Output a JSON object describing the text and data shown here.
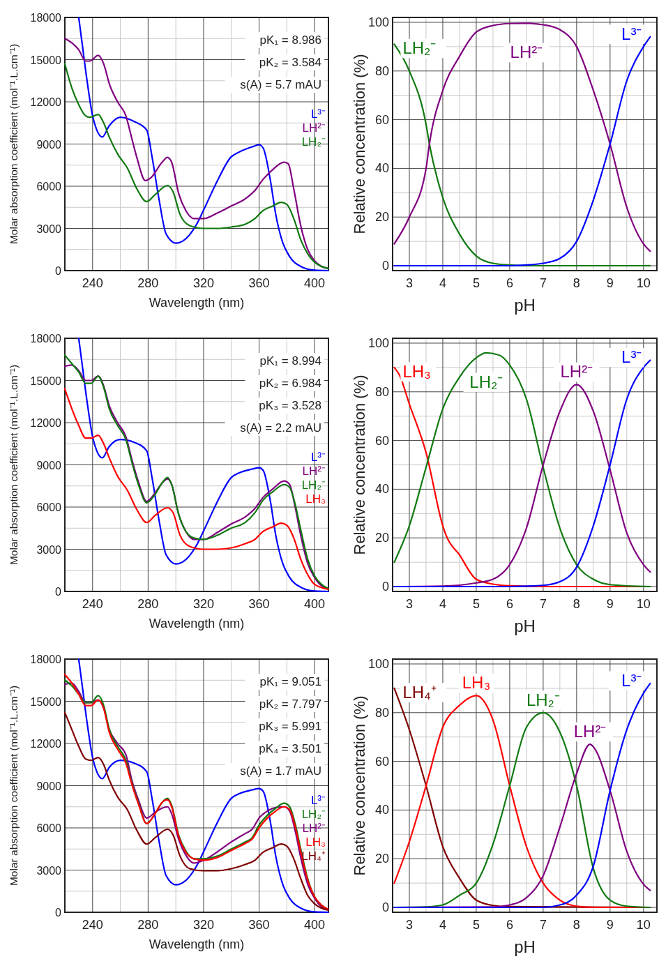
{
  "chart_data": [
    {
      "type": "line",
      "xlabel": "Wavelength (nm)",
      "ylabel": "Molar absorption coefficient (mol⁻¹.L.cm⁻¹)",
      "xlim": [
        220,
        410
      ],
      "xticks": [
        240,
        280,
        320,
        360,
        400
      ],
      "ylim": [
        0,
        18000
      ],
      "yticks": [
        0,
        3000,
        6000,
        9000,
        12000,
        15000,
        18000
      ],
      "grid": true,
      "annotations": [
        "pK₁ = 8.986",
        "pK₂ = 3.584",
        "s(A) = 5.7 mAU"
      ],
      "series": [
        {
          "name": "L³⁻",
          "color": "#0000ff",
          "x": [
            230,
            232,
            236,
            240,
            243,
            247,
            252,
            260,
            270,
            279,
            283,
            288,
            293,
            300,
            305,
            315,
            320,
            330,
            340,
            345,
            355,
            360,
            363,
            368,
            372,
            377,
            382,
            390,
            400,
            410
          ],
          "values": [
            18000,
            16500,
            13500,
            11000,
            10000,
            9500,
            10300,
            10900,
            10600,
            10000,
            8000,
            5000,
            2600,
            1950,
            2100,
            3300,
            4300,
            6400,
            8100,
            8400,
            8800,
            8950,
            8700,
            6500,
            4000,
            2000,
            1000,
            300,
            30,
            0
          ]
        },
        {
          "name": "LH²⁻",
          "color": "#800080",
          "x": [
            220,
            225,
            230,
            235,
            238,
            244,
            248,
            252,
            258,
            264,
            268,
            272,
            278,
            282,
            290,
            294,
            297,
            302,
            307,
            313,
            320,
            330,
            340,
            350,
            357,
            363,
            370,
            378,
            381,
            385,
            390,
            395,
            400,
            405,
            410
          ],
          "values": [
            16500,
            16200,
            15700,
            14900,
            14900,
            15300,
            14700,
            13300,
            12000,
            11000,
            9500,
            8000,
            6400,
            6600,
            7700,
            8050,
            7700,
            5500,
            4300,
            3700,
            3700,
            4100,
            4600,
            5100,
            5700,
            6500,
            7200,
            7700,
            7600,
            5800,
            3200,
            1500,
            700,
            300,
            150
          ]
        },
        {
          "name": "LH₂⁻",
          "color": "#107a10",
          "x": [
            220,
            225,
            230,
            235,
            238,
            244,
            248,
            252,
            258,
            265,
            272,
            279,
            285,
            294,
            298,
            303,
            310,
            320,
            330,
            340,
            350,
            357,
            362,
            370,
            376,
            380,
            385,
            390,
            395,
            400,
            410
          ],
          "values": [
            14700,
            13000,
            11800,
            11000,
            10900,
            11100,
            10500,
            9500,
            8300,
            7300,
            5800,
            4900,
            5400,
            6050,
            5600,
            4000,
            3200,
            3000,
            3000,
            3100,
            3300,
            3700,
            4200,
            4600,
            4850,
            4700,
            3700,
            2200,
            1200,
            600,
            150
          ]
        }
      ]
    },
    {
      "type": "line",
      "xlabel": "pH",
      "ylabel": "Relative concentration (%)",
      "xlim": [
        2.5,
        10.4
      ],
      "xticks": [
        3,
        4,
        5,
        6,
        7,
        8,
        9,
        10
      ],
      "ylim": [
        -2,
        102
      ],
      "yticks": [
        0,
        20,
        40,
        60,
        80,
        100
      ],
      "grid": true,
      "series": [
        {
          "name": "LH₂⁻",
          "color": "#107a10",
          "x": [
            2.55,
            3,
            3.5,
            3.6,
            4,
            4.5,
            5,
            5.5,
            6,
            6.5,
            10.2
          ],
          "values": [
            91,
            80,
            58,
            50,
            28,
            13,
            4,
            1,
            0.3,
            0,
            0
          ]
        },
        {
          "name": "LH²⁻",
          "color": "#800080",
          "x": [
            2.55,
            3,
            3.5,
            3.6,
            4,
            4.5,
            5,
            5.5,
            6,
            6.5,
            7,
            7.5,
            8,
            8.5,
            9,
            9.5,
            10,
            10.2
          ],
          "values": [
            9,
            20,
            40,
            50,
            72,
            86,
            96,
            98.7,
            99.5,
            99.6,
            99,
            97,
            90,
            72,
            50,
            24,
            9,
            6
          ]
        },
        {
          "name": "L³⁻",
          "color": "#0000ff",
          "x": [
            2.55,
            6,
            6.5,
            7,
            7.5,
            8,
            8.5,
            9,
            9.5,
            10,
            10.2
          ],
          "values": [
            0,
            0,
            0.3,
            1,
            3,
            10,
            27,
            50,
            76,
            90,
            94
          ]
        }
      ]
    },
    {
      "type": "line",
      "xlabel": "Wavelength (nm)",
      "ylabel": "Molar absorption coefficient (mol⁻¹.L.cm⁻¹)",
      "xlim": [
        220,
        410
      ],
      "xticks": [
        240,
        280,
        320,
        360,
        400
      ],
      "ylim": [
        0,
        18000
      ],
      "yticks": [
        0,
        3000,
        6000,
        9000,
        12000,
        15000,
        18000
      ],
      "grid": true,
      "annotations": [
        "pK₁ = 8.994",
        "pK₂ = 6.984",
        "pK₃ = 3.528",
        "s(A) = 2.2 mAU"
      ],
      "series": [
        {
          "name": "L³⁻",
          "color": "#0000ff",
          "x": [
            230,
            232,
            236,
            240,
            243,
            247,
            252,
            260,
            270,
            279,
            283,
            288,
            293,
            300,
            305,
            315,
            320,
            330,
            340,
            345,
            355,
            360,
            363,
            368,
            372,
            377,
            382,
            390,
            400,
            410
          ],
          "values": [
            18000,
            16500,
            13500,
            11000,
            10000,
            9500,
            10300,
            10800,
            10600,
            10000,
            8000,
            5000,
            2600,
            1950,
            2100,
            3300,
            4300,
            6400,
            8100,
            8400,
            8700,
            8800,
            8600,
            6500,
            4000,
            2000,
            1000,
            300,
            30,
            0
          ]
        },
        {
          "name": "LH²⁻",
          "color": "#800080",
          "x": [
            220,
            225,
            230,
            235,
            239,
            244,
            248,
            252,
            258,
            264,
            268,
            273,
            279,
            285,
            290,
            294,
            297,
            302,
            307,
            313,
            320,
            330,
            340,
            350,
            357,
            363,
            370,
            378,
            382,
            386,
            390,
            395,
            400,
            405,
            410
          ],
          "values": [
            16000,
            16100,
            15700,
            15000,
            15000,
            15300,
            14600,
            13200,
            12000,
            11000,
            9500,
            7800,
            6400,
            7000,
            7700,
            8000,
            7600,
            5500,
            4300,
            3700,
            3700,
            4200,
            4800,
            5300,
            5900,
            6700,
            7300,
            7850,
            7600,
            6000,
            4000,
            2000,
            1000,
            400,
            200
          ]
        },
        {
          "name": "LH₂⁻",
          "color": "#107a10",
          "x": [
            220,
            225,
            230,
            235,
            239,
            244,
            248,
            252,
            258,
            264,
            268,
            273,
            279,
            285,
            290,
            294,
            297,
            302,
            307,
            313,
            320,
            330,
            340,
            350,
            357,
            363,
            370,
            378,
            382,
            386,
            390,
            395,
            400,
            405,
            410
          ],
          "values": [
            16800,
            16200,
            15600,
            14800,
            14800,
            15300,
            14500,
            13000,
            11800,
            10800,
            9300,
            7600,
            6300,
            6900,
            7700,
            8100,
            7600,
            5500,
            4300,
            3800,
            3700,
            4000,
            4500,
            4900,
            5600,
            6500,
            7100,
            7600,
            7400,
            6200,
            4400,
            2300,
            1100,
            500,
            200
          ]
        },
        {
          "name": "LH₃",
          "color": "#ff0000",
          "x": [
            220,
            225,
            230,
            235,
            239,
            244,
            248,
            252,
            258,
            265,
            272,
            279,
            285,
            294,
            298,
            303,
            310,
            320,
            330,
            340,
            350,
            357,
            362,
            370,
            376,
            380,
            385,
            390,
            395,
            400,
            410
          ],
          "values": [
            14400,
            13000,
            11800,
            10900,
            10900,
            11100,
            10500,
            9500,
            8200,
            7200,
            5800,
            4900,
            5400,
            5950,
            5600,
            4000,
            3200,
            3000,
            3000,
            3100,
            3400,
            3700,
            4200,
            4600,
            4850,
            4700,
            3800,
            2300,
            1200,
            500,
            150
          ]
        }
      ]
    },
    {
      "type": "line",
      "xlabel": "pH",
      "ylabel": "Relative concentration (%)",
      "xlim": [
        2.5,
        10.4
      ],
      "xticks": [
        3,
        4,
        5,
        6,
        7,
        8,
        9,
        10
      ],
      "ylim": [
        -2,
        102
      ],
      "yticks": [
        0,
        20,
        40,
        60,
        80,
        100
      ],
      "grid": true,
      "series": [
        {
          "name": "LH₃",
          "color": "#ff0000",
          "x": [
            2.55,
            2.7,
            3,
            3.5,
            4,
            4.1,
            4.5,
            5,
            5.5,
            6,
            7,
            10.2
          ],
          "values": [
            90,
            87,
            75,
            55,
            25,
            21,
            13,
            3,
            1,
            0.3,
            0,
            0
          ]
        },
        {
          "name": "LH₂⁻",
          "color": "#107a10",
          "x": [
            2.55,
            3,
            3.5,
            4,
            4.5,
            5,
            5.3,
            5.7,
            6,
            6.5,
            7,
            7.5,
            8,
            8.5,
            9,
            10.2
          ],
          "values": [
            10,
            25,
            49,
            73,
            86,
            94,
            96,
            95,
            91,
            77,
            49,
            24,
            9,
            3,
            0.8,
            0
          ]
        },
        {
          "name": "LH²⁻",
          "color": "#800080",
          "x": [
            2.55,
            4,
            5,
            5.5,
            6,
            6.5,
            7,
            7.5,
            8,
            8.5,
            9,
            9.5,
            10,
            10.2
          ],
          "values": [
            0,
            0.2,
            1.5,
            3,
            9,
            24,
            50,
            72,
            83,
            72,
            48,
            22,
            9,
            6
          ]
        },
        {
          "name": "L³⁻",
          "color": "#0000ff",
          "x": [
            2.55,
            6,
            7,
            7.5,
            8,
            8.5,
            9,
            9.5,
            10,
            10.2
          ],
          "values": [
            0,
            0,
            0.5,
            2,
            8,
            25,
            50,
            77,
            90,
            93
          ]
        }
      ]
    },
    {
      "type": "line",
      "xlabel": "Wavelength (nm)",
      "ylabel": "Molar absorption coefficient (mol⁻¹.L.cm⁻¹)",
      "xlim": [
        220,
        410
      ],
      "xticks": [
        240,
        280,
        320,
        360,
        400
      ],
      "ylim": [
        0,
        18000
      ],
      "yticks": [
        0,
        3000,
        6000,
        9000,
        12000,
        15000,
        18000
      ],
      "grid": true,
      "annotations": [
        "pK₁ = 9.051",
        "pK₂ = 7.797",
        "pK₃ = 5.991",
        "pK₄ = 3.501",
        "s(A) = 1.7 mAU"
      ],
      "series": [
        {
          "name": "L³⁻",
          "color": "#0000ff",
          "x": [
            230,
            232,
            236,
            240,
            243,
            247,
            252,
            260,
            270,
            279,
            283,
            288,
            293,
            300,
            305,
            315,
            320,
            330,
            340,
            345,
            355,
            360,
            363,
            368,
            372,
            377,
            382,
            390,
            400,
            410
          ],
          "values": [
            18000,
            16500,
            13500,
            11000,
            10000,
            9500,
            10300,
            10800,
            10600,
            10000,
            8000,
            5000,
            2600,
            1950,
            2100,
            3300,
            4300,
            6400,
            8100,
            8400,
            8700,
            8800,
            8600,
            6500,
            4000,
            2000,
            1000,
            300,
            30,
            0
          ]
        },
        {
          "name": "LH²⁻",
          "color": "#800080",
          "x": [
            220,
            225,
            230,
            235,
            239,
            244,
            248,
            252,
            258,
            264,
            268,
            273,
            279,
            285,
            290,
            294,
            297,
            302,
            307,
            313,
            320,
            330,
            340,
            350,
            355,
            360,
            366,
            372,
            378,
            382,
            386,
            390,
            395,
            400,
            405,
            410
          ],
          "values": [
            16200,
            16300,
            15700,
            14900,
            14900,
            15100,
            14500,
            13000,
            12000,
            11200,
            9500,
            8000,
            6700,
            7100,
            7400,
            7500,
            7000,
            5200,
            4100,
            3500,
            3700,
            4300,
            5000,
            5600,
            5900,
            6700,
            7200,
            7450,
            7500,
            7200,
            5800,
            3900,
            2000,
            1000,
            400,
            200
          ]
        },
        {
          "name": "LH₂⁻",
          "color": "#107a10",
          "x": [
            220,
            225,
            230,
            235,
            239,
            244,
            248,
            252,
            258,
            264,
            268,
            273,
            279,
            285,
            290,
            294,
            297,
            302,
            307,
            313,
            320,
            330,
            340,
            350,
            355,
            360,
            366,
            372,
            378,
            382,
            386,
            390,
            395,
            400,
            405,
            410
          ],
          "values": [
            16500,
            16100,
            15500,
            14900,
            14900,
            15400,
            14700,
            13000,
            11800,
            10800,
            9300,
            7800,
            6300,
            7000,
            7800,
            8100,
            7600,
            5500,
            4400,
            3800,
            3800,
            4000,
            4500,
            5000,
            5300,
            6200,
            6900,
            7400,
            7750,
            7500,
            6300,
            4500,
            2400,
            1100,
            500,
            200
          ]
        },
        {
          "name": "LH₃",
          "color": "#ff0000",
          "x": [
            220,
            225,
            230,
            235,
            239,
            244,
            248,
            252,
            258,
            264,
            268,
            273,
            279,
            285,
            290,
            294,
            297,
            302,
            307,
            313,
            320,
            330,
            340,
            350,
            355,
            360,
            366,
            372,
            378,
            382,
            386,
            390,
            395,
            400,
            405,
            410
          ],
          "values": [
            16900,
            16300,
            15500,
            14700,
            14700,
            15100,
            14500,
            12800,
            11600,
            10600,
            9200,
            7700,
            6300,
            7000,
            7800,
            8000,
            7500,
            5400,
            4300,
            3800,
            3700,
            3900,
            4400,
            4900,
            5200,
            6000,
            6700,
            7200,
            7500,
            7300,
            6100,
            4300,
            2300,
            1100,
            500,
            200
          ]
        },
        {
          "name": "LH₄⁺",
          "color": "#800000",
          "x": [
            220,
            225,
            230,
            235,
            239,
            244,
            248,
            252,
            258,
            265,
            272,
            279,
            285,
            294,
            298,
            303,
            310,
            320,
            330,
            340,
            350,
            357,
            362,
            370,
            376,
            380,
            385,
            390,
            395,
            400,
            410
          ],
          "values": [
            14200,
            13000,
            11800,
            10900,
            10800,
            11000,
            10500,
            9400,
            8200,
            7300,
            5800,
            4850,
            5300,
            5900,
            5500,
            4000,
            3100,
            2950,
            2950,
            3100,
            3400,
            3700,
            4200,
            4600,
            4850,
            4700,
            3800,
            2400,
            1200,
            600,
            150
          ]
        }
      ]
    },
    {
      "type": "line",
      "xlabel": "pH",
      "ylabel": "Relative concentration (%)",
      "xlim": [
        2.5,
        10.4
      ],
      "xticks": [
        3,
        4,
        5,
        6,
        7,
        8,
        9,
        10
      ],
      "ylim": [
        -2,
        102
      ],
      "yticks": [
        0,
        20,
        40,
        60,
        80,
        100
      ],
      "grid": true,
      "series": [
        {
          "name": "LH₄⁺",
          "color": "#800000",
          "x": [
            2.55,
            3,
            3.5,
            4,
            4.5,
            5,
            5.5,
            6,
            10.2
          ],
          "values": [
            90,
            73,
            50,
            25,
            12,
            3,
            0.8,
            0.3,
            0
          ]
        },
        {
          "name": "LH₃",
          "color": "#ff0000",
          "x": [
            2.55,
            3,
            3.5,
            4,
            4.5,
            5,
            5.5,
            6,
            6.5,
            7,
            7.5,
            8,
            8.5,
            10.2
          ],
          "values": [
            10,
            27,
            50,
            74,
            83,
            87,
            77,
            50,
            25,
            10,
            3,
            0.5,
            0,
            0
          ]
        },
        {
          "name": "LH₂⁻",
          "color": "#107a10",
          "x": [
            2.55,
            3.5,
            4,
            4.5,
            5,
            5.5,
            6,
            6.5,
            7,
            7.5,
            8,
            8.5,
            9,
            9.5,
            10.2
          ],
          "values": [
            0,
            0.2,
            1,
            5,
            10,
            26,
            50,
            74,
            80,
            72,
            50,
            16,
            3,
            0.5,
            0
          ]
        },
        {
          "name": "LH²⁻",
          "color": "#800080",
          "x": [
            2.55,
            5.5,
            6,
            6.5,
            7,
            7.5,
            8,
            8.4,
            8.5,
            9,
            9.5,
            10,
            10.2
          ],
          "values": [
            0,
            0.2,
            1,
            4,
            13,
            33,
            55,
            67,
            66,
            48,
            23,
            9.5,
            7
          ]
        },
        {
          "name": "L³⁻",
          "color": "#0000ff",
          "x": [
            2.55,
            7,
            7.5,
            8,
            8.5,
            9,
            9.5,
            9.7,
            10,
            10.2
          ],
          "values": [
            0,
            0,
            1,
            5,
            17,
            48,
            73,
            80,
            88,
            92
          ]
        }
      ]
    }
  ]
}
